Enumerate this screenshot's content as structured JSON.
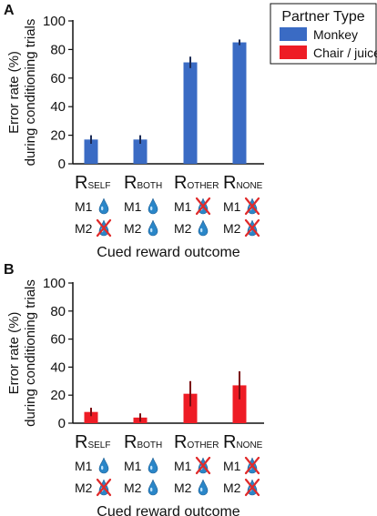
{
  "legend": {
    "title": "Partner Type",
    "items": [
      {
        "label": "Monkey",
        "color": "#3a6bc4"
      },
      {
        "label": "Chair / juice",
        "color": "#ee1c25"
      }
    ]
  },
  "monkeys": {
    "m1": "M1",
    "m2": "M2"
  },
  "icons": {
    "reward": "water-drop-icon",
    "no_reward": "crossed-drop-icon"
  },
  "conditions": [
    {
      "main": "R",
      "sub": "SELF",
      "m1_reward": true,
      "m2_reward": false
    },
    {
      "main": "R",
      "sub": "BOTH",
      "m1_reward": true,
      "m2_reward": true
    },
    {
      "main": "R",
      "sub": "OTHER",
      "m1_reward": false,
      "m2_reward": true
    },
    {
      "main": "R",
      "sub": "NONE",
      "m1_reward": false,
      "m2_reward": false
    }
  ],
  "chart_data": [
    {
      "panel": "A",
      "type": "bar",
      "categories": [
        "RSELF",
        "RBOTH",
        "ROTHER",
        "RNONE"
      ],
      "series": [
        {
          "name": "Monkey",
          "values": [
            17,
            17,
            71,
            85
          ],
          "errors": [
            3,
            3,
            4,
            2
          ],
          "color": "#3a6bc4"
        }
      ],
      "ylabel_line1": "Error rate (%)",
      "ylabel_line2": "during conditioning trials",
      "xlabel": "Cued reward outcome",
      "ylim": [
        0,
        100
      ],
      "yticks": [
        "0",
        "20",
        "40",
        "60",
        "80",
        "100"
      ],
      "ytick_values": [
        0,
        20,
        40,
        60,
        80,
        100
      ]
    },
    {
      "panel": "B",
      "type": "bar",
      "categories": [
        "RSELF",
        "RBOTH",
        "ROTHER",
        "RNONE"
      ],
      "series": [
        {
          "name": "Chair / juice",
          "values": [
            8,
            4,
            21,
            27
          ],
          "errors": [
            3,
            3,
            9,
            10
          ],
          "color": "#ee1c25"
        }
      ],
      "ylabel_line1": "Error rate (%)",
      "ylabel_line2": "during conditioning trials",
      "xlabel": "Cued reward outcome",
      "ylim": [
        0,
        100
      ],
      "yticks": [
        "0",
        "20",
        "40",
        "60",
        "80",
        "100"
      ],
      "ytick_values": [
        0,
        20,
        40,
        60,
        80,
        100
      ]
    }
  ]
}
